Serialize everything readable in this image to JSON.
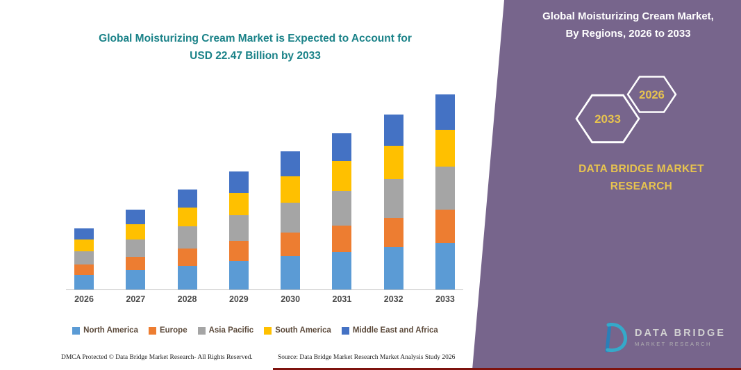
{
  "panel": {
    "title_line1": "Global Moisturizing Cream Market,",
    "title_line2": "By Regions, 2026 to 2033",
    "hex_year_back": "2033",
    "hex_year_front": "2026",
    "brand_line1": "DATA BRIDGE MARKET",
    "brand_line2": "RESEARCH",
    "background_color": "#77658c",
    "accent_color": "#e7c34f"
  },
  "chart_data": {
    "type": "bar",
    "stacked": true,
    "title_line1": "Global Moisturizing Cream Market is Expected to Account for",
    "title_line2": "USD 22.47 Billion by 2033",
    "title_color": "#1a8288",
    "unit": "USD Billion",
    "headline_value": "USD 22.47 Billion by 2033",
    "categories": [
      "2026",
      "2027",
      "2028",
      "2029",
      "2030",
      "2031",
      "2032",
      "2033"
    ],
    "series": [
      {
        "name": "North America",
        "color": "#5B9BD5",
        "values": [
          1.68,
          2.21,
          2.76,
          3.26,
          3.82,
          4.32,
          4.85,
          5.39
        ]
      },
      {
        "name": "Europe",
        "color": "#ED7D31",
        "values": [
          1.19,
          1.56,
          1.96,
          2.31,
          2.7,
          3.06,
          3.43,
          3.82
        ]
      },
      {
        "name": "Asia Pacific",
        "color": "#A5A5A5",
        "values": [
          1.54,
          2.02,
          2.53,
          2.99,
          3.5,
          3.96,
          4.44,
          4.94
        ]
      },
      {
        "name": "South America",
        "color": "#FFC000",
        "values": [
          1.33,
          1.75,
          2.19,
          2.58,
          3.02,
          3.42,
          3.84,
          4.27
        ]
      },
      {
        "name": "Middle East and Africa",
        "color": "#4472C4",
        "values": [
          1.26,
          1.66,
          2.07,
          2.45,
          2.86,
          3.24,
          3.64,
          4.05
        ]
      }
    ],
    "totals": [
      7.0,
      9.2,
      11.51,
      13.59,
      15.9,
      18.0,
      20.2,
      22.47
    ],
    "ylim": [
      0,
      24
    ],
    "grid": false,
    "y_axis_visible": false,
    "legend_position": "bottom"
  },
  "footer": {
    "dmca": "DMCA Protected © Data Bridge Market Research-  All Rights Reserved.",
    "source": "Source: Data Bridge Market Research  Market Analysis Study 2026"
  },
  "logo": {
    "name_line1": "DATA BRIDGE",
    "name_line2": "MARKET RESEARCH"
  }
}
